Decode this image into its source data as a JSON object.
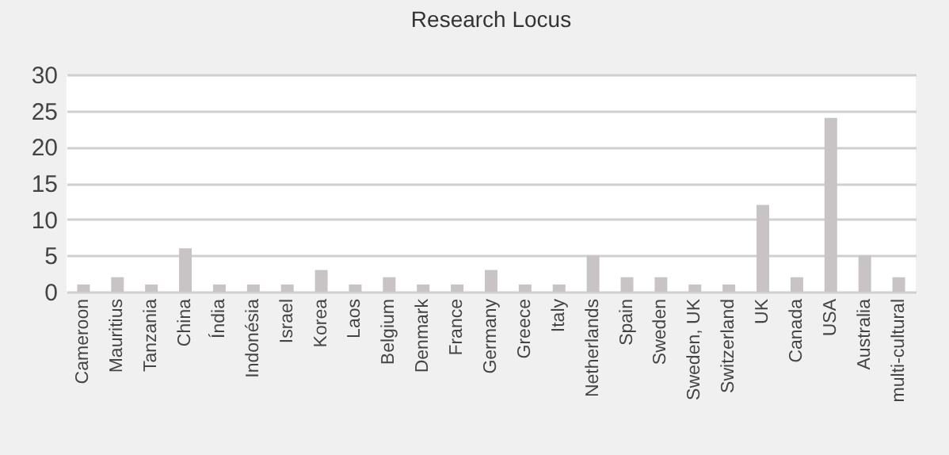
{
  "chart_data": {
    "type": "bar",
    "title": "Research Locus",
    "categories": [
      "Cameroon",
      "Mauritius",
      "Tanzania",
      "China",
      "Índia",
      "Indonésia",
      "Israel",
      "Korea",
      "Laos",
      "Belgium",
      "Denmark",
      "France",
      "Germany",
      "Greece",
      "Italy",
      "Netherlands",
      "Spain",
      "Sweden",
      "Sweden, UK",
      "Switzerland",
      "UK",
      "Canada",
      "USA",
      "Australia",
      "multi-cultural"
    ],
    "values": [
      1,
      2,
      1,
      6,
      1,
      1,
      1,
      3,
      1,
      2,
      1,
      1,
      3,
      1,
      1,
      5,
      2,
      2,
      1,
      1,
      12,
      2,
      24,
      5,
      2
    ],
    "color": "#c8c4c5",
    "ylim": [
      0,
      30
    ],
    "yticks": [
      0,
      5,
      10,
      15,
      20,
      25,
      30
    ],
    "grid": "y"
  }
}
